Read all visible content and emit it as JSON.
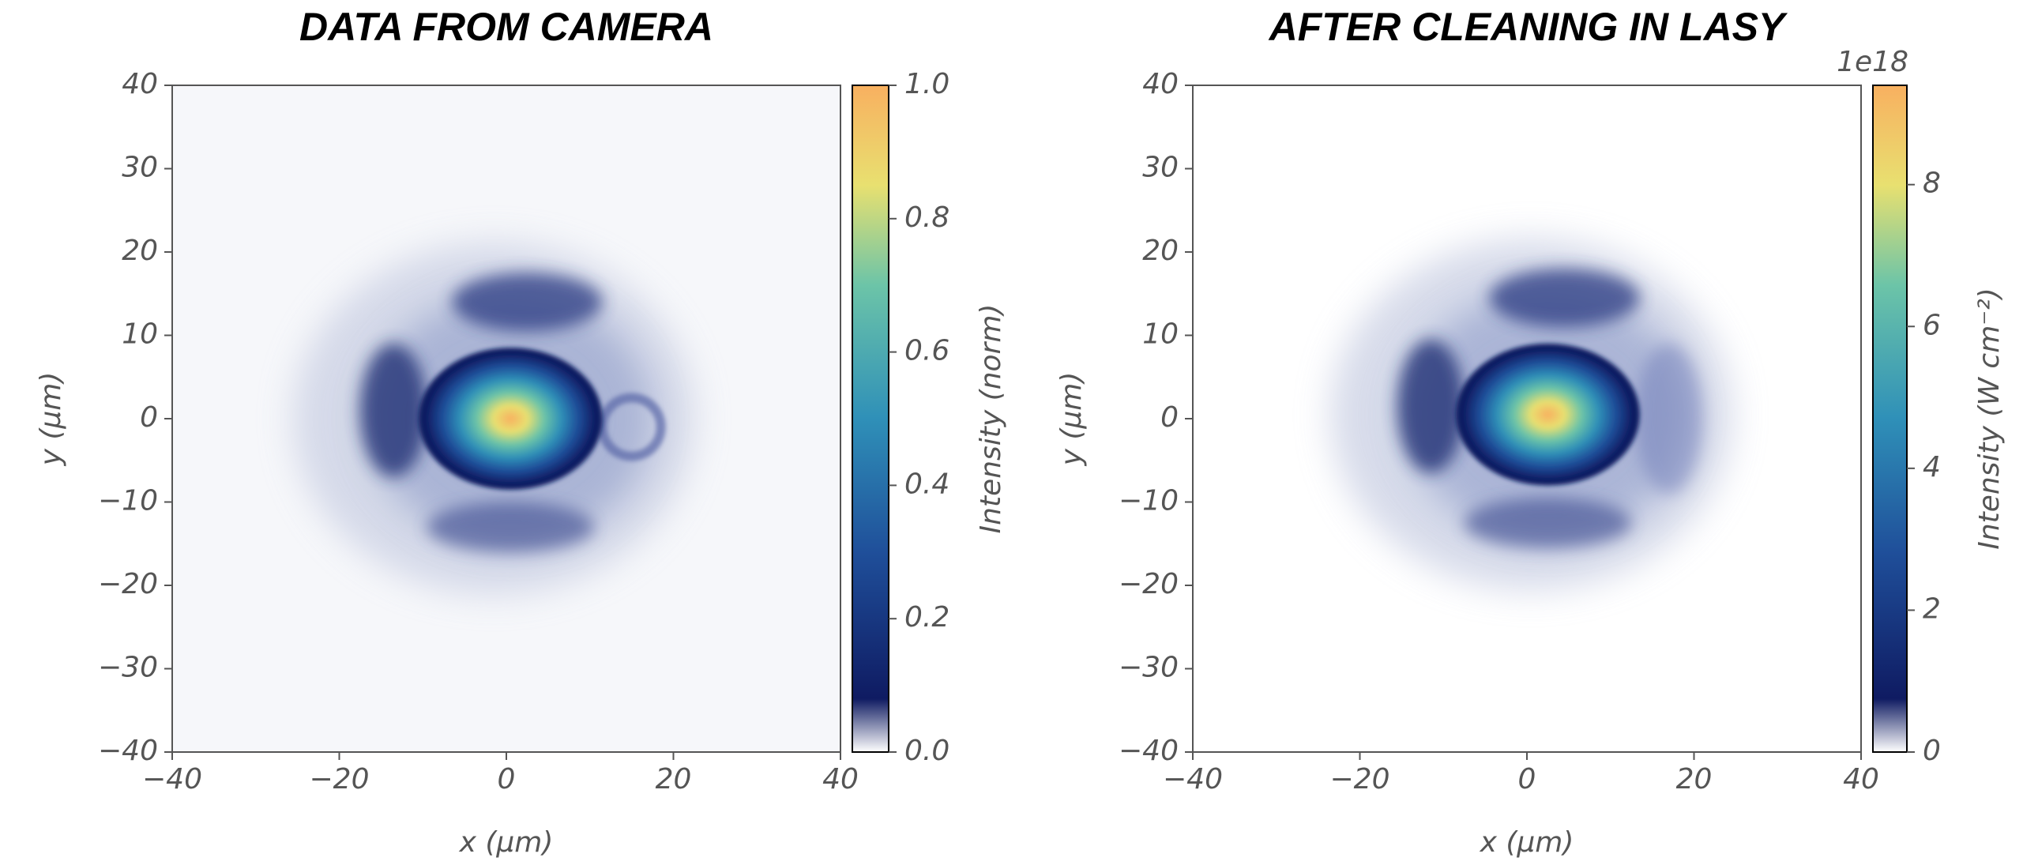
{
  "chart_data": [
    {
      "type": "heatmap",
      "title": "DATA FROM CAMERA",
      "xlabel": "x (μm)",
      "ylabel": "y (μm)",
      "xlim": [
        -40,
        40
      ],
      "ylim": [
        -40,
        40
      ],
      "xticks": [
        {
          "value": -40,
          "label": "−40"
        },
        {
          "value": -20,
          "label": "−20"
        },
        0,
        20,
        40
      ],
      "yticks": [
        {
          "value": -40,
          "label": "−40"
        },
        {
          "value": -30,
          "label": "−30"
        },
        {
          "value": -20,
          "label": "−20"
        },
        {
          "value": -10,
          "label": "−10"
        },
        0,
        10,
        20,
        30,
        40
      ],
      "colormap": [
        "#ffffff",
        "#0f1b62",
        "#1f4f9a",
        "#2f90b8",
        "#6cc4a8",
        "#e8e070",
        "#f8b060"
      ],
      "colorbar": {
        "label": "Intensity (norm)",
        "lim": [
          0,
          1
        ],
        "ticks": [
          {
            "value": 0,
            "label": "0.0"
          },
          0.2,
          0.4,
          0.6,
          0.8,
          {
            "value": 1,
            "label": "1.0"
          }
        ]
      }
    },
    {
      "type": "heatmap",
      "title": "AFTER CLEANING IN LASY",
      "xlabel": "x (μm)",
      "ylabel": "y (μm)",
      "xlim": [
        -40,
        40
      ],
      "ylim": [
        -40,
        40
      ],
      "xticks": [
        {
          "value": -40,
          "label": "−40"
        },
        {
          "value": -20,
          "label": "−20"
        },
        0,
        20,
        40
      ],
      "yticks": [
        {
          "value": -40,
          "label": "−40"
        },
        {
          "value": -30,
          "label": "−30"
        },
        {
          "value": -20,
          "label": "−20"
        },
        {
          "value": -10,
          "label": "−10"
        },
        0,
        10,
        20,
        30,
        40
      ],
      "colormap": [
        "#ffffff",
        "#0f1b62",
        "#1f4f9a",
        "#2f90b8",
        "#6cc4a8",
        "#e8e070",
        "#f8b060"
      ],
      "colorbar": {
        "label": "Intensity (W cm⁻²)",
        "lim": [
          0,
          9.4
        ],
        "offset_label": "1e18",
        "ticks": [
          0,
          2,
          4,
          6,
          8
        ]
      }
    }
  ]
}
